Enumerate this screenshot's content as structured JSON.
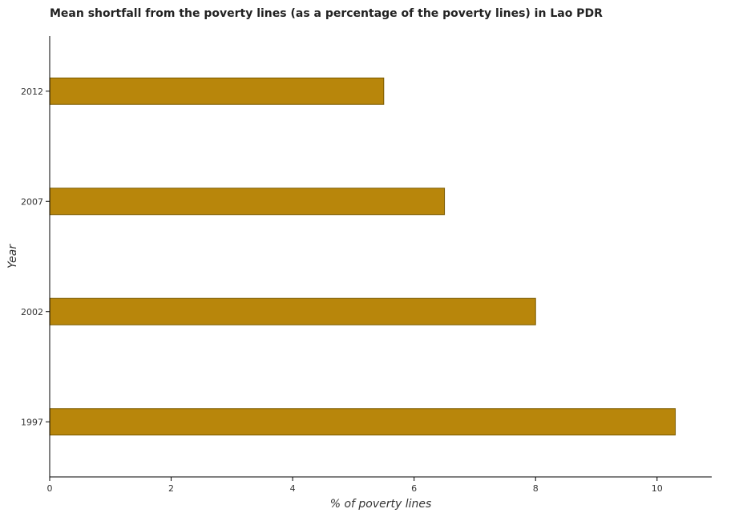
{
  "chart_data": {
    "type": "bar",
    "orientation": "horizontal",
    "title": "Mean shortfall from the poverty lines (as a percentage of the poverty lines) in Lao PDR",
    "xlabel": "% of poverty lines",
    "ylabel": "Year",
    "categories": [
      "1997",
      "2002",
      "2007",
      "2012"
    ],
    "values": [
      10.3,
      8.0,
      6.5,
      5.5
    ],
    "xlim": [
      0,
      10.9
    ],
    "xticks": [
      0,
      2,
      4,
      6,
      8,
      10
    ],
    "grid": false,
    "legend": "none",
    "colors": {
      "bar_fill": "#b8860b",
      "bar_stroke": "#7a5a00",
      "axis": "#000000"
    }
  }
}
